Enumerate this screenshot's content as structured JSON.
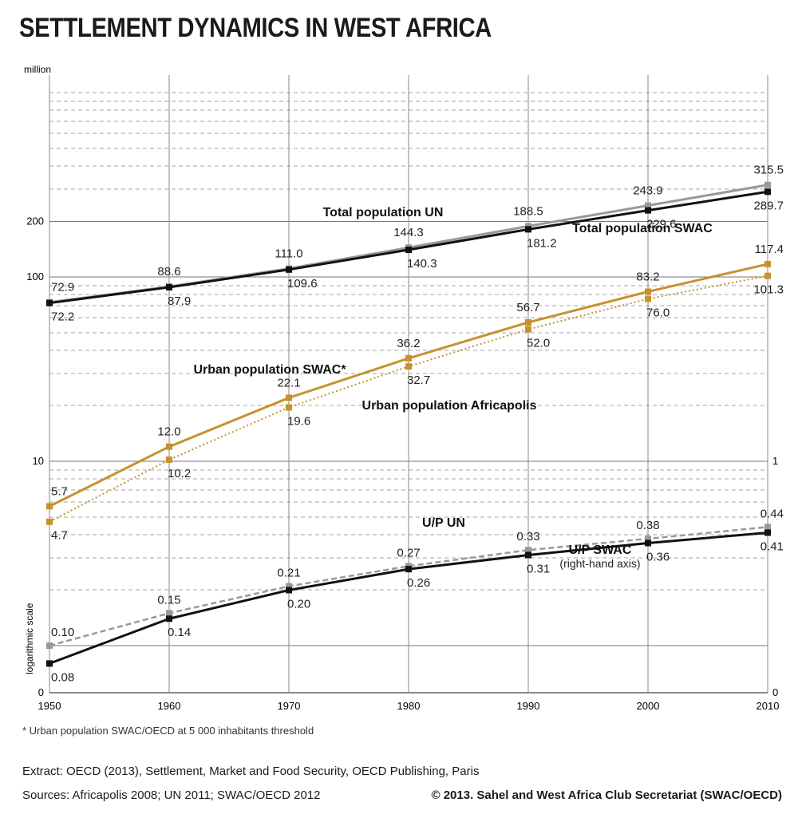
{
  "title": "SETTLEMENT DYNAMICS IN WEST AFRICA",
  "footnote": "* Urban population SWAC/OECD at 5 000 inhabitants threshold",
  "extract": "Extract: OECD (2013), Settlement, Market and Food Security, OECD Publishing, Paris",
  "sources": "Sources: Africapolis 2008; UN 2011; SWAC/OECD 2012",
  "copyright": "© 2013. Sahel and West Africa Club Secretariat (SWAC/OECD)",
  "colors": {
    "un_grey": "#999999",
    "swac_black": "#111111",
    "urban_gold": "#c8912e",
    "grid": "#888888"
  },
  "chart_data": {
    "type": "line",
    "x": [
      1950,
      1960,
      1970,
      1980,
      1990,
      2000,
      2010
    ],
    "y_unit_label": "million",
    "y_scale_label": "logarithmic scale",
    "left_axis": {
      "scale": "log",
      "ticks": [
        "0",
        "10",
        "100",
        "200"
      ]
    },
    "right_axis": {
      "scale": "log",
      "ticks": [
        "0",
        "1"
      ]
    },
    "grid": true,
    "series": [
      {
        "name": "Total population UN",
        "axis": "left",
        "color": "#999999",
        "style": "solid",
        "values": [
          72.9,
          88.6,
          111.0,
          144.3,
          188.5,
          243.9,
          315.5
        ],
        "labels": [
          "72.9",
          "88.6",
          "111.0",
          "144.3",
          "188.5",
          "243.9",
          "315.5"
        ]
      },
      {
        "name": "Total population SWAC",
        "axis": "left",
        "color": "#111111",
        "style": "solid",
        "values": [
          72.2,
          87.9,
          109.6,
          140.3,
          181.2,
          229.6,
          289.7
        ],
        "labels": [
          "72.2",
          "87.9",
          "109.6",
          "140.3",
          "181.2",
          "229.6",
          "289.7"
        ]
      },
      {
        "name": "Urban population SWAC*",
        "axis": "left",
        "color": "#c8912e",
        "style": "solid",
        "values": [
          5.7,
          12.0,
          22.1,
          36.2,
          56.7,
          83.2,
          117.4
        ],
        "labels": [
          "5.7",
          "12.0",
          "22.1",
          "36.2",
          "56.7",
          "83.2",
          "117.4"
        ]
      },
      {
        "name": "Urban population Africapolis",
        "axis": "left",
        "color": "#c8912e",
        "style": "dotted",
        "values": [
          4.7,
          10.2,
          19.6,
          32.7,
          52.0,
          76.0,
          101.3
        ],
        "labels": [
          "4.7",
          "10.2",
          "19.6",
          "32.7",
          "52.0",
          "76.0",
          "101.3"
        ]
      },
      {
        "name": "U/P UN",
        "axis": "right",
        "color": "#999999",
        "style": "dashed",
        "values": [
          0.1,
          0.15,
          0.21,
          0.27,
          0.33,
          0.38,
          0.44
        ],
        "labels": [
          "0.10",
          "0.15",
          "0.21",
          "0.27",
          "0.33",
          "0.38",
          "0.44"
        ]
      },
      {
        "name": "U/P SWAC",
        "sublabel": "(right-hand axis)",
        "axis": "right",
        "color": "#111111",
        "style": "solid",
        "values": [
          0.08,
          0.14,
          0.2,
          0.26,
          0.31,
          0.36,
          0.41
        ],
        "labels": [
          "0.08",
          "0.14",
          "0.20",
          "0.26",
          "0.31",
          "0.36",
          "0.41"
        ]
      }
    ]
  }
}
